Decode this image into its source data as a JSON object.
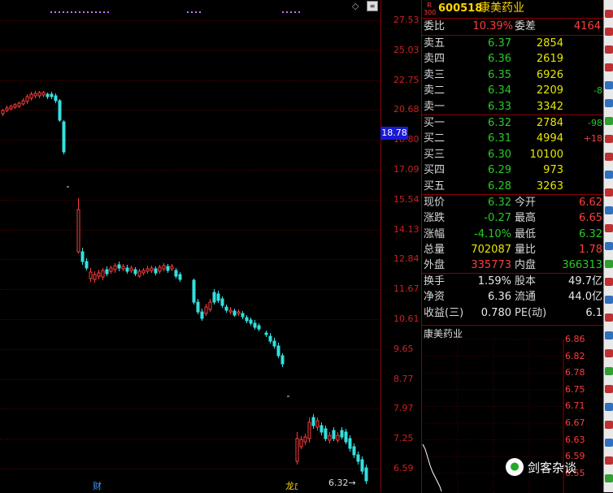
{
  "chart": {
    "price_ticks": [
      "27.53",
      "25.03",
      "22.75",
      "20.68",
      "18.80",
      "17.09",
      "15.54",
      "14.13",
      "12.84",
      "11.67",
      "10.61",
      "9.65",
      "8.77",
      "7.97",
      "7.25",
      "6.59"
    ],
    "current_price_tag": "18.78",
    "low_marker": "6.32",
    "event_marks": [
      "财",
      "龙虎榜"
    ],
    "top_icons": [
      "diamond-icon",
      "menu-icon"
    ]
  },
  "quote": {
    "market_tag_top": "R",
    "market_tag_bottom": "300",
    "code": "600518",
    "name": "康美药业",
    "weibi_label": "委比",
    "weibi_value": "10.39%",
    "weicha_label": "委差",
    "weicha_value": "4164",
    "sell": [
      {
        "label": "卖五",
        "price": "6.37",
        "vol": "2854",
        "chg": ""
      },
      {
        "label": "卖四",
        "price": "6.36",
        "vol": "2619",
        "chg": ""
      },
      {
        "label": "卖三",
        "price": "6.35",
        "vol": "6926",
        "chg": ""
      },
      {
        "label": "卖二",
        "price": "6.34",
        "vol": "2209",
        "chg": "-8"
      },
      {
        "label": "卖一",
        "price": "6.33",
        "vol": "3342",
        "chg": ""
      }
    ],
    "buy": [
      {
        "label": "买一",
        "price": "6.32",
        "vol": "2784",
        "chg": "-98"
      },
      {
        "label": "买二",
        "price": "6.31",
        "vol": "4994",
        "chg": "+18"
      },
      {
        "label": "买三",
        "price": "6.30",
        "vol": "10100",
        "chg": ""
      },
      {
        "label": "买四",
        "price": "6.29",
        "vol": "973",
        "chg": ""
      },
      {
        "label": "买五",
        "price": "6.28",
        "vol": "3263",
        "chg": ""
      }
    ],
    "stats": [
      {
        "l1": "现价",
        "v1": "6.32",
        "l2": "今开",
        "v2": "6.62"
      },
      {
        "l1": "涨跌",
        "v1": "-0.27",
        "l2": "最高",
        "v2": "6.65"
      },
      {
        "l1": "涨幅",
        "v1": "-4.10%",
        "l2": "最低",
        "v2": "6.32"
      },
      {
        "l1": "总量",
        "v1": "702087",
        "l2": "量比",
        "v2": "1.78"
      },
      {
        "l1": "外盘",
        "v1": "335773",
        "l2": "内盘",
        "v2": "366313"
      }
    ],
    "info": [
      {
        "l1": "换手",
        "v1": "1.59%",
        "l2": "股本",
        "v2": "49.7亿"
      },
      {
        "l1": "净资",
        "v1": "6.36",
        "l2": "流通",
        "v2": "44.0亿"
      },
      {
        "l1": "收益(三)",
        "v1": "0.780",
        "l2": "PE(动)",
        "v2": "6.1"
      }
    ]
  },
  "mini": {
    "title": "康美药业",
    "prices": [
      "6.86",
      "6.82",
      "6.78",
      "6.75",
      "6.71",
      "6.67",
      "6.63",
      "6.59",
      "6.55"
    ]
  },
  "watermark": "剑客杂谈",
  "colors": {
    "up": "#ff3c3c",
    "down": "#29c929",
    "bg": "#000000",
    "grid": "#8b0000",
    "candle_down": "#34e0e0"
  }
}
